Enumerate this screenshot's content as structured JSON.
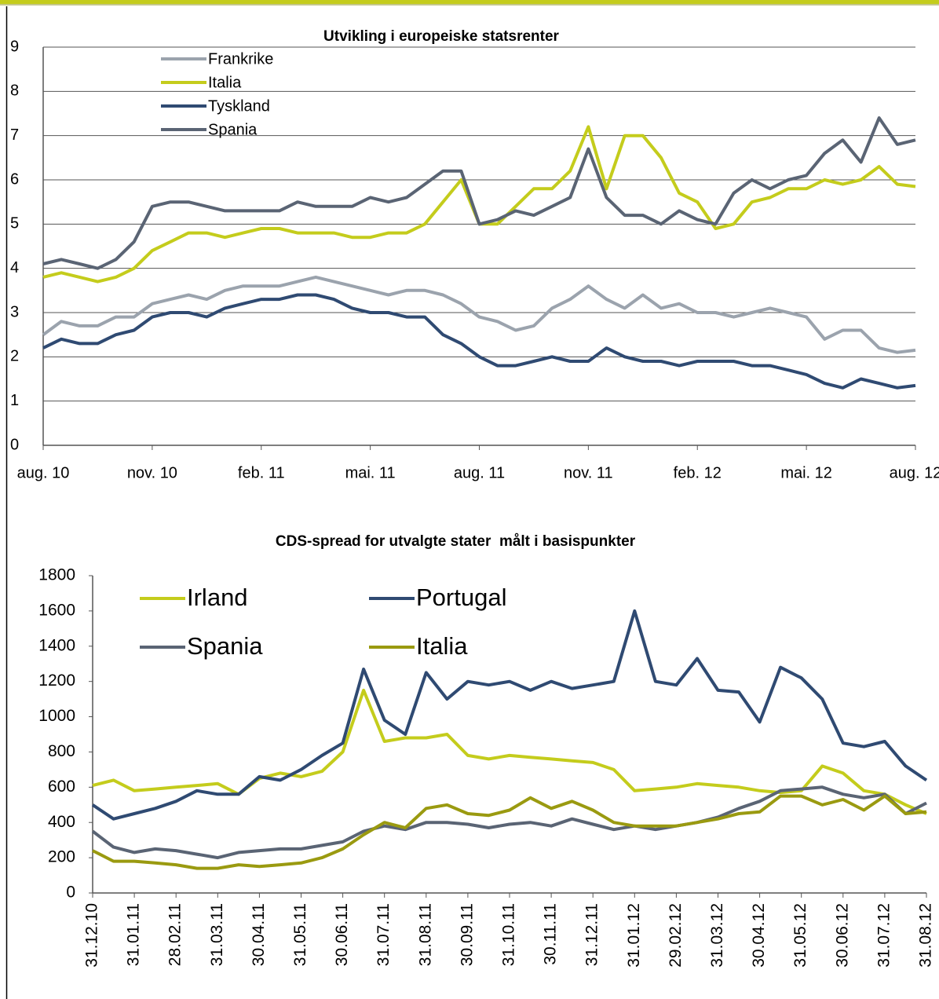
{
  "chart_data": [
    {
      "type": "line",
      "title": "Utvikling i europeiske statsrenter",
      "grid": true,
      "categories": [
        "aug. 10",
        null,
        null,
        null,
        null,
        null,
        "nov. 10",
        null,
        null,
        null,
        null,
        null,
        "feb. 11",
        null,
        null,
        null,
        null,
        null,
        "mai. 11",
        null,
        null,
        null,
        null,
        null,
        "aug. 11",
        null,
        null,
        null,
        null,
        null,
        "nov. 11",
        null,
        null,
        null,
        null,
        null,
        "feb. 12",
        null,
        null,
        null,
        null,
        null,
        "mai. 12",
        null,
        null,
        null,
        null,
        null,
        "aug. 12"
      ],
      "ylim": [
        0,
        9
      ],
      "yticks": [
        0,
        1,
        2,
        3,
        4,
        5,
        6,
        7,
        8,
        9
      ],
      "series": [
        {
          "name": "Frankrike",
          "color": "#9ba3ad",
          "values": [
            2.5,
            2.8,
            2.7,
            2.7,
            2.9,
            2.9,
            3.2,
            3.3,
            3.4,
            3.3,
            3.5,
            3.6,
            3.6,
            3.6,
            3.7,
            3.8,
            3.7,
            3.6,
            3.5,
            3.4,
            3.5,
            3.5,
            3.4,
            3.2,
            2.9,
            2.8,
            2.6,
            2.7,
            3.1,
            3.3,
            3.6,
            3.3,
            3.1,
            3.4,
            3.1,
            3.2,
            3.0,
            3.0,
            2.9,
            3.0,
            3.1,
            3.0,
            2.9,
            2.4,
            2.6,
            2.6,
            2.2,
            2.1,
            2.15
          ]
        },
        {
          "name": "Italia",
          "color": "#c4cc1c",
          "values": [
            3.8,
            3.9,
            3.8,
            3.7,
            3.8,
            4.0,
            4.4,
            4.6,
            4.8,
            4.8,
            4.7,
            4.8,
            4.9,
            4.9,
            4.8,
            4.8,
            4.8,
            4.7,
            4.7,
            4.8,
            4.8,
            5.0,
            5.5,
            6.0,
            5.0,
            5.0,
            5.4,
            5.8,
            5.8,
            6.2,
            7.2,
            5.8,
            7.0,
            7.0,
            6.5,
            5.7,
            5.5,
            4.9,
            5.0,
            5.5,
            5.6,
            5.8,
            5.8,
            6.0,
            5.9,
            6.0,
            6.3,
            5.9,
            5.85
          ]
        },
        {
          "name": "Tyskland",
          "color": "#2f4a72",
          "values": [
            2.2,
            2.4,
            2.3,
            2.3,
            2.5,
            2.6,
            2.9,
            3.0,
            3.0,
            2.9,
            3.1,
            3.2,
            3.3,
            3.3,
            3.4,
            3.4,
            3.3,
            3.1,
            3.0,
            3.0,
            2.9,
            2.9,
            2.5,
            2.3,
            2.0,
            1.8,
            1.8,
            1.9,
            2.0,
            1.9,
            1.9,
            2.2,
            2.0,
            1.9,
            1.9,
            1.8,
            1.9,
            1.9,
            1.9,
            1.8,
            1.8,
            1.7,
            1.6,
            1.4,
            1.3,
            1.5,
            1.4,
            1.3,
            1.35
          ]
        },
        {
          "name": "Spania",
          "color": "#5a6474",
          "values": [
            4.1,
            4.2,
            4.1,
            4.0,
            4.2,
            4.6,
            5.4,
            5.5,
            5.5,
            5.4,
            5.3,
            5.3,
            5.3,
            5.3,
            5.5,
            5.4,
            5.4,
            5.4,
            5.6,
            5.5,
            5.6,
            5.9,
            6.2,
            6.2,
            5.0,
            5.1,
            5.3,
            5.2,
            5.4,
            5.6,
            6.7,
            5.6,
            5.2,
            5.2,
            5.0,
            5.3,
            5.1,
            5.0,
            5.7,
            6.0,
            5.8,
            6.0,
            6.1,
            6.6,
            6.9,
            6.4,
            7.4,
            6.8,
            6.9
          ]
        }
      ]
    },
    {
      "type": "line",
      "title": "CDS-spread for utvalgte stater  målt i basispunkter",
      "grid": false,
      "categories": [
        "31.12.10",
        null,
        "31.01.11",
        null,
        "28.02.11",
        null,
        "31.03.11",
        null,
        "30.04.11",
        null,
        "31.05.11",
        null,
        "30.06.11",
        null,
        "31.07.11",
        null,
        "31.08.11",
        null,
        "30.09.11",
        null,
        "31.10.11",
        null,
        "30.11.11",
        null,
        "31.12.11",
        null,
        "31.01.12",
        null,
        "29.02.12",
        null,
        "31.03.12",
        null,
        "30.04.12",
        null,
        "31.05.12",
        null,
        "30.06.12",
        null,
        "31.07.12",
        null,
        "31.08.12"
      ],
      "ylim": [
        0,
        1800
      ],
      "yticks": [
        0,
        200,
        400,
        600,
        800,
        1000,
        1200,
        1400,
        1600,
        1800
      ],
      "series": [
        {
          "name": "Irland",
          "color": "#c4cc1c",
          "values": [
            610,
            640,
            580,
            590,
            600,
            610,
            620,
            560,
            650,
            680,
            660,
            690,
            800,
            1150,
            860,
            880,
            880,
            900,
            780,
            760,
            780,
            770,
            760,
            750,
            740,
            700,
            580,
            590,
            600,
            620,
            610,
            600,
            580,
            570,
            580,
            720,
            680,
            580,
            560,
            500,
            450
          ]
        },
        {
          "name": "Portugal",
          "color": "#2f4a72",
          "values": [
            500,
            420,
            450,
            480,
            520,
            580,
            560,
            560,
            660,
            640,
            700,
            780,
            850,
            1270,
            980,
            900,
            1250,
            1100,
            1200,
            1180,
            1200,
            1150,
            1200,
            1160,
            1180,
            1200,
            1600,
            1200,
            1180,
            1330,
            1150,
            1140,
            970,
            1280,
            1220,
            1100,
            850,
            830,
            860,
            720,
            640
          ]
        },
        {
          "name": "Spania",
          "color": "#5a6474",
          "values": [
            350,
            260,
            230,
            250,
            240,
            220,
            200,
            230,
            240,
            250,
            250,
            270,
            290,
            350,
            380,
            360,
            400,
            400,
            390,
            370,
            390,
            400,
            380,
            420,
            390,
            360,
            380,
            360,
            380,
            400,
            430,
            480,
            520,
            580,
            590,
            600,
            560,
            540,
            560,
            450,
            510
          ]
        },
        {
          "name": "Italia",
          "color": "#9a9a10",
          "values": [
            240,
            180,
            180,
            170,
            160,
            140,
            140,
            160,
            150,
            160,
            170,
            200,
            250,
            330,
            400,
            370,
            480,
            500,
            450,
            440,
            470,
            540,
            480,
            520,
            470,
            400,
            380,
            380,
            380,
            400,
            420,
            450,
            460,
            550,
            550,
            500,
            530,
            470,
            550,
            450,
            460
          ]
        }
      ]
    }
  ]
}
